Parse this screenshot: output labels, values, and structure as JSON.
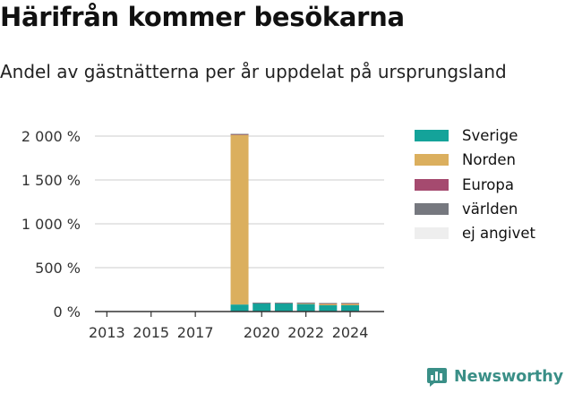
{
  "chart_data": {
    "type": "bar",
    "stacked": true,
    "title": "Härifrån kommer besökarna",
    "subtitle": "Andel av gästnätterna per år uppdelat på ursprungsland",
    "xlabel": "",
    "ylabel": "",
    "x": [
      2013,
      2014,
      2015,
      2016,
      2017,
      2018,
      2019,
      2020,
      2021,
      2022,
      2023,
      2024
    ],
    "x_ticks": [
      2013,
      2015,
      2017,
      2020,
      2022,
      2024
    ],
    "ylim": [
      0,
      2000
    ],
    "y_ticks": [
      0,
      500,
      1000,
      1500,
      2000
    ],
    "y_tick_labels": [
      "0 %",
      "500 %",
      "1 000 %",
      "1 500 %",
      "2 000 %"
    ],
    "grid": true,
    "legend_position": "right",
    "series": [
      {
        "name": "Sverige",
        "color": "#14a39a",
        "values": [
          0,
          0,
          0,
          0,
          0,
          0,
          80,
          98,
          97,
          85,
          72,
          72
        ]
      },
      {
        "name": "Norden",
        "color": "#dbaf5e",
        "values": [
          0,
          0,
          0,
          0,
          0,
          0,
          1935,
          0,
          0,
          10,
          16,
          16
        ]
      },
      {
        "name": "Europa",
        "color": "#a54a6f",
        "values": [
          0,
          0,
          0,
          0,
          0,
          0,
          6,
          1,
          2,
          4,
          6,
          7
        ]
      },
      {
        "name": "världen",
        "color": "#76787f",
        "values": [
          0,
          0,
          0,
          0,
          0,
          0,
          4,
          1,
          1,
          2,
          3,
          3
        ]
      },
      {
        "name": "ej angivet",
        "color": "#eeeeee",
        "values": [
          0,
          0,
          0,
          0,
          0,
          0,
          0,
          0,
          0,
          0,
          0,
          0
        ]
      }
    ]
  },
  "brand": {
    "name": "Newsworthy",
    "icon": "bar-chart-speech-bubble-icon",
    "color": "#3a8f87"
  }
}
